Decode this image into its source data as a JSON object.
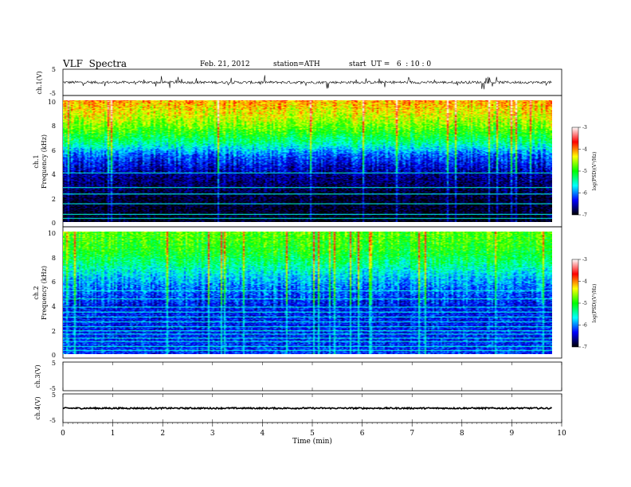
{
  "header": {
    "title": "VLF  Spectra",
    "date": "Feb. 21, 2012",
    "station": "station=ATH",
    "start": "start  UT =   6  : 10 : 0"
  },
  "panels": {
    "ch1v": {
      "label": "ch.1(V)",
      "ticks": [
        "5",
        "-5"
      ]
    },
    "spec1": {
      "label1": "ch.1",
      "label2": "Frequency  (kHz)",
      "ticks": [
        "10",
        "8",
        "6",
        "4",
        "2",
        "0"
      ]
    },
    "spec2": {
      "label1": "ch.2",
      "label2": "Frequency  (kHz)",
      "ticks": [
        "10",
        "8",
        "6",
        "4",
        "2",
        "0"
      ]
    },
    "ch3v": {
      "label": "ch.3(V)",
      "ticks": [
        "5",
        "-5"
      ]
    },
    "ch4v": {
      "label": "ch.4(V)",
      "ticks": [
        "5",
        "-5"
      ]
    }
  },
  "colorbar": {
    "label": "log(PSD)(V²/Hz)",
    "ticks": [
      "-3",
      "-4",
      "-5",
      "-6",
      "-7"
    ],
    "colors": [
      "#ffffff",
      "#ff0000",
      "#ffff00",
      "#00ff00",
      "#00ffff",
      "#0000ff",
      "#000000"
    ]
  },
  "xaxis": {
    "label": "Time  (min)",
    "ticks": [
      "0",
      "1",
      "2",
      "3",
      "4",
      "5",
      "6",
      "7",
      "8",
      "9",
      "10"
    ]
  },
  "chart_data": [
    {
      "type": "line",
      "title": "ch.1(V)",
      "xlabel": "Time  (min)",
      "ylabel": "ch.1(V)",
      "xlim": [
        0,
        10
      ],
      "ylim": [
        -5,
        5
      ],
      "x_end": 9.8,
      "baseline": 0,
      "noise_amp": 0.5,
      "spike_amp": 2.5
    },
    {
      "type": "heatmap",
      "title": "ch.1",
      "xlabel": "Time  (min)",
      "ylabel": "Frequency  (kHz)",
      "xlim": [
        0,
        10
      ],
      "ylim": [
        0,
        10
      ],
      "clim": [
        -7,
        -3
      ],
      "profile": [
        {
          "f": 0,
          "v": -7
        },
        {
          "f": 2,
          "v": -6.9
        },
        {
          "f": 4,
          "v": -6.6
        },
        {
          "f": 5.5,
          "v": -6.1
        },
        {
          "f": 6.5,
          "v": -5.4
        },
        {
          "f": 7.5,
          "v": -4.9
        },
        {
          "f": 8.5,
          "v": -4.5
        },
        {
          "f": 10,
          "v": -4.1
        }
      ],
      "lines_khz": [
        0.3,
        0.6,
        1.5,
        2.3,
        2.8,
        4.0
      ]
    },
    {
      "type": "heatmap",
      "title": "ch.2",
      "xlabel": "Time  (min)",
      "ylabel": "Frequency  (kHz)",
      "xlim": [
        0,
        10
      ],
      "ylim": [
        0,
        10
      ],
      "clim": [
        -7,
        -3
      ],
      "profile": [
        {
          "f": 0,
          "v": -6.2
        },
        {
          "f": 2,
          "v": -6.3
        },
        {
          "f": 4,
          "v": -6.3
        },
        {
          "f": 5.5,
          "v": -6.0
        },
        {
          "f": 6.5,
          "v": -5.7
        },
        {
          "f": 7.5,
          "v": -5.3
        },
        {
          "f": 8.5,
          "v": -5.0
        },
        {
          "f": 10,
          "v": -4.8
        }
      ],
      "lines_khz": [
        0.3,
        0.6,
        1.0,
        1.3,
        1.6,
        1.9,
        2.2,
        2.6,
        3.0,
        3.4,
        3.8,
        4.5,
        5.2
      ]
    },
    {
      "type": "line",
      "title": "ch.3(V)",
      "xlabel": "Time  (min)",
      "ylabel": "ch.3(V)",
      "xlim": [
        0,
        10
      ],
      "ylim": [
        -5,
        5
      ],
      "note": "no signal"
    },
    {
      "type": "line",
      "title": "ch.4(V)",
      "xlabel": "Time  (min)",
      "ylabel": "ch.4(V)",
      "xlim": [
        0,
        10
      ],
      "ylim": [
        -5,
        5
      ],
      "x_end": 9.8,
      "baseline": 0,
      "noise_amp": 0.25
    }
  ]
}
